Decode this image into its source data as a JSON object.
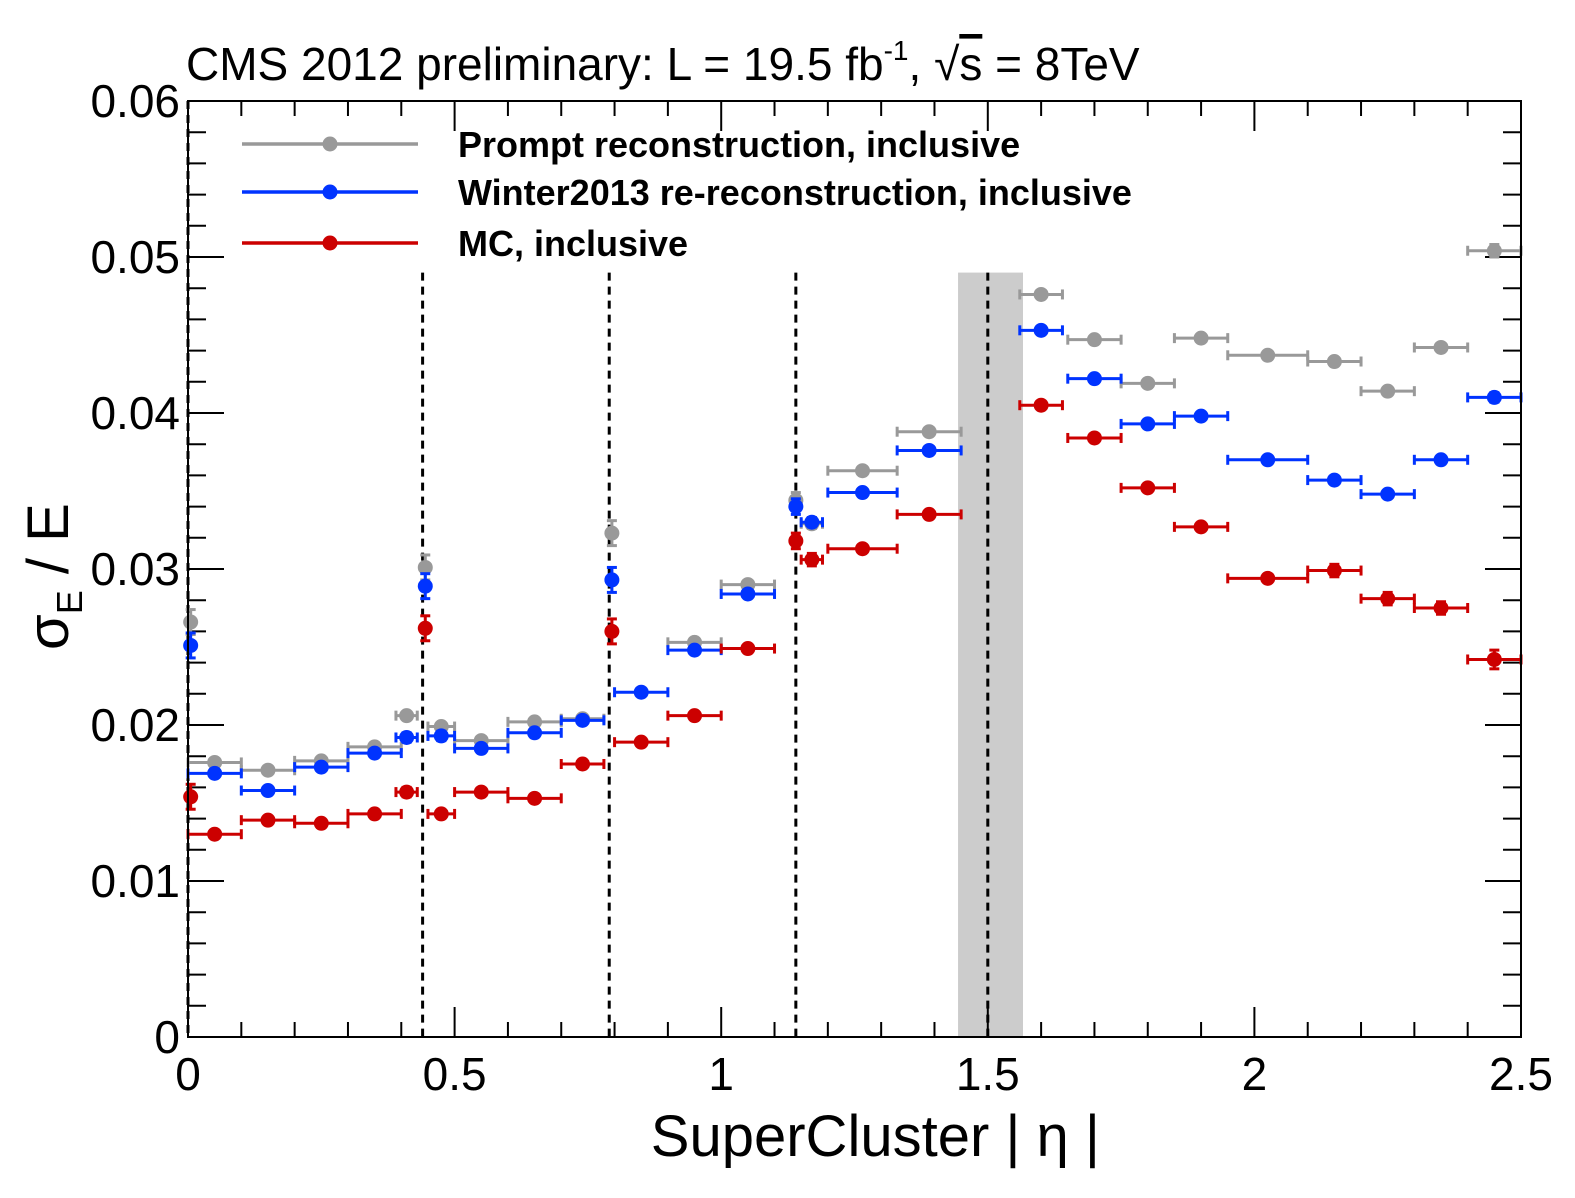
{
  "chart_data": {
    "type": "scatter",
    "title": {
      "main": "CMS 2012 preliminary: L = 19.5 fb",
      "lumi_exp": "-1",
      "sep": ", ",
      "sqrt_sym": "√",
      "sqrt_arg": "s",
      "energy": " = 8TeV"
    },
    "xlabel": "SuperCluster | η |",
    "ylabel": {
      "sigma": "σ",
      "sub": "E",
      "rest": " / E"
    },
    "xlim": [
      0,
      2.5
    ],
    "ylim": [
      0,
      0.06
    ],
    "x_ticks": [
      {
        "v": 0,
        "label": "0"
      },
      {
        "v": 0.5,
        "label": "0.5"
      },
      {
        "v": 1,
        "label": "1"
      },
      {
        "v": 1.5,
        "label": "1.5"
      },
      {
        "v": 2,
        "label": "2"
      },
      {
        "v": 2.5,
        "label": "2.5"
      }
    ],
    "y_ticks": [
      {
        "v": 0,
        "label": "0"
      },
      {
        "v": 0.01,
        "label": "0.01"
      },
      {
        "v": 0.02,
        "label": "0.02"
      },
      {
        "v": 0.03,
        "label": "0.03"
      },
      {
        "v": 0.04,
        "label": "0.04"
      },
      {
        "v": 0.05,
        "label": "0.05"
      },
      {
        "v": 0.06,
        "label": "0.06"
      }
    ],
    "legend_position": "top-left",
    "module_boundaries": [
      0.0,
      0.44,
      0.79,
      1.14,
      1.5
    ],
    "excluded_band": [
      1.4442,
      1.566
    ],
    "series": [
      {
        "name": "Prompt reconstruction, inclusive",
        "color": "#999999",
        "points": [
          [
            0.005,
            0.0266,
            0.005,
            0.0008
          ],
          [
            0.05,
            0.0176,
            0.05,
            0.0002
          ],
          [
            0.15,
            0.0171,
            0.05,
            0.0002
          ],
          [
            0.25,
            0.0177,
            0.05,
            0.0002
          ],
          [
            0.35,
            0.0186,
            0.05,
            0.0002
          ],
          [
            0.41,
            0.0206,
            0.02,
            0.0002
          ],
          [
            0.445,
            0.0301,
            0.005,
            0.0008
          ],
          [
            0.475,
            0.0199,
            0.025,
            0.0002
          ],
          [
            0.55,
            0.019,
            0.05,
            0.0002
          ],
          [
            0.65,
            0.0202,
            0.05,
            0.0002
          ],
          [
            0.74,
            0.0204,
            0.04,
            0.0002
          ],
          [
            0.795,
            0.0323,
            0.005,
            0.0008
          ],
          [
            0.95,
            0.0253,
            0.05,
            0.0002
          ],
          [
            1.05,
            0.029,
            0.05,
            0.0002
          ],
          [
            1.14,
            0.0344,
            0.005,
            0.0005
          ],
          [
            1.17,
            0.0329,
            0.02,
            0.0003
          ],
          [
            1.265,
            0.0363,
            0.065,
            0.0002
          ],
          [
            1.39,
            0.0388,
            0.06,
            0.0002
          ],
          [
            1.6,
            0.0476,
            0.04,
            0.0002
          ],
          [
            1.7,
            0.0447,
            0.05,
            0.0002
          ],
          [
            1.8,
            0.0419,
            0.05,
            0.0002
          ],
          [
            1.9,
            0.0448,
            0.05,
            0.0002
          ],
          [
            2.025,
            0.0437,
            0.075,
            0.0002
          ],
          [
            2.15,
            0.0433,
            0.05,
            0.0002
          ],
          [
            2.25,
            0.0414,
            0.05,
            0.0002
          ],
          [
            2.35,
            0.0442,
            0.05,
            0.0002
          ],
          [
            2.45,
            0.0504,
            0.05,
            0.0004
          ]
        ]
      },
      {
        "name": "Winter2013 re-reconstruction, inclusive",
        "color": "#0033ff",
        "points": [
          [
            0.005,
            0.0251,
            0.005,
            0.0008
          ],
          [
            0.05,
            0.0169,
            0.05,
            0.0002
          ],
          [
            0.15,
            0.0158,
            0.05,
            0.0002
          ],
          [
            0.25,
            0.0173,
            0.05,
            0.0002
          ],
          [
            0.35,
            0.0182,
            0.05,
            0.0002
          ],
          [
            0.41,
            0.0192,
            0.02,
            0.0003
          ],
          [
            0.445,
            0.0289,
            0.005,
            0.0008
          ],
          [
            0.475,
            0.0193,
            0.025,
            0.0003
          ],
          [
            0.55,
            0.0185,
            0.05,
            0.0002
          ],
          [
            0.65,
            0.0195,
            0.05,
            0.0002
          ],
          [
            0.74,
            0.0203,
            0.04,
            0.0002
          ],
          [
            0.795,
            0.0293,
            0.005,
            0.0008
          ],
          [
            0.85,
            0.0221,
            0.05,
            0.0002
          ],
          [
            0.95,
            0.0248,
            0.05,
            0.0002
          ],
          [
            1.05,
            0.0284,
            0.05,
            0.0002
          ],
          [
            1.14,
            0.034,
            0.005,
            0.0005
          ],
          [
            1.17,
            0.033,
            0.02,
            0.0003
          ],
          [
            1.265,
            0.0349,
            0.065,
            0.0002
          ],
          [
            1.39,
            0.0376,
            0.06,
            0.0002
          ],
          [
            1.6,
            0.0453,
            0.04,
            0.0002
          ],
          [
            1.7,
            0.0422,
            0.05,
            0.0002
          ],
          [
            1.8,
            0.0393,
            0.05,
            0.0002
          ],
          [
            1.9,
            0.0398,
            0.05,
            0.0002
          ],
          [
            2.025,
            0.037,
            0.075,
            0.0002
          ],
          [
            2.15,
            0.0357,
            0.05,
            0.0002
          ],
          [
            2.25,
            0.0348,
            0.05,
            0.0002
          ],
          [
            2.35,
            0.037,
            0.05,
            0.0002
          ],
          [
            2.45,
            0.041,
            0.05,
            0.0003
          ]
        ]
      },
      {
        "name": "MC, inclusive",
        "color": "#cc0000",
        "points": [
          [
            0.005,
            0.0154,
            0.005,
            0.0008
          ],
          [
            0.05,
            0.013,
            0.05,
            0.0002
          ],
          [
            0.15,
            0.0139,
            0.05,
            0.0002
          ],
          [
            0.25,
            0.0137,
            0.05,
            0.0002
          ],
          [
            0.35,
            0.0143,
            0.05,
            0.0002
          ],
          [
            0.41,
            0.0157,
            0.02,
            0.0003
          ],
          [
            0.445,
            0.0262,
            0.005,
            0.0008
          ],
          [
            0.475,
            0.0143,
            0.025,
            0.0002
          ],
          [
            0.55,
            0.0157,
            0.05,
            0.0002
          ],
          [
            0.65,
            0.0153,
            0.05,
            0.0002
          ],
          [
            0.74,
            0.0175,
            0.04,
            0.0002
          ],
          [
            0.795,
            0.026,
            0.005,
            0.0008
          ],
          [
            0.85,
            0.0189,
            0.05,
            0.0002
          ],
          [
            0.95,
            0.0206,
            0.05,
            0.0002
          ],
          [
            1.05,
            0.0249,
            0.05,
            0.0002
          ],
          [
            1.14,
            0.0318,
            0.005,
            0.0005
          ],
          [
            1.17,
            0.0306,
            0.02,
            0.0004
          ],
          [
            1.265,
            0.0313,
            0.065,
            0.0002
          ],
          [
            1.39,
            0.0335,
            0.06,
            0.0002
          ],
          [
            1.6,
            0.0405,
            0.04,
            0.0002
          ],
          [
            1.7,
            0.0384,
            0.05,
            0.0002
          ],
          [
            1.8,
            0.0352,
            0.05,
            0.0002
          ],
          [
            1.9,
            0.0327,
            0.05,
            0.0002
          ],
          [
            2.025,
            0.0294,
            0.075,
            0.0002
          ],
          [
            2.15,
            0.0299,
            0.05,
            0.0004
          ],
          [
            2.25,
            0.0281,
            0.05,
            0.0004
          ],
          [
            2.35,
            0.0275,
            0.05,
            0.0004
          ],
          [
            2.45,
            0.0242,
            0.05,
            0.0006
          ]
        ]
      }
    ]
  }
}
